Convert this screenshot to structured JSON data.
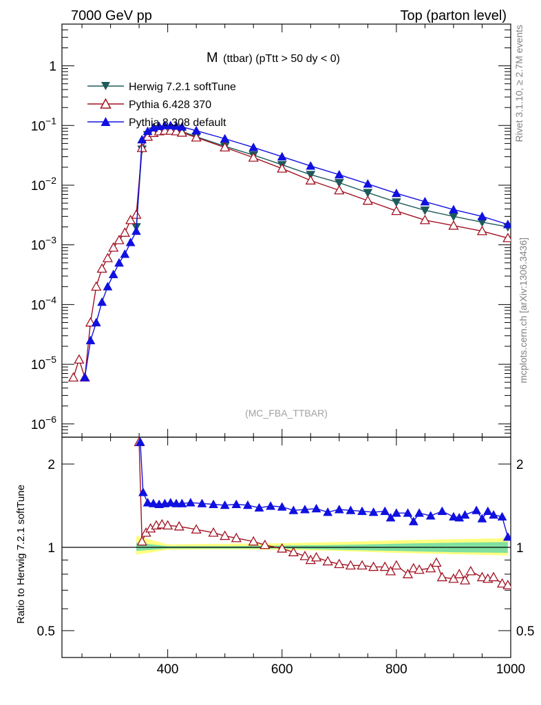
{
  "header": {
    "left": "7000 GeV pp",
    "right": "Top (parton level)"
  },
  "side": {
    "rivet": "Rivet 3.1.10, ≥ 2.7M events",
    "source": "mcplots.cern.ch [arXiv:1306.3436]"
  },
  "chart_data": [
    {
      "type": "line",
      "title_main": "M",
      "title_sub": "(ttbar) (pTtt > 50 dy < 0)",
      "watermark": "(MC_FBA_TTBAR)",
      "yscale": "log",
      "xlim": [
        215,
        1000
      ],
      "ylim": [
        6e-07,
        5
      ],
      "xticks": [
        400,
        600,
        800,
        1000
      ],
      "yticks": [
        {
          "v": 1e-06,
          "m": "10",
          "e": "−6"
        },
        {
          "v": 1e-05,
          "m": "10",
          "e": "−5"
        },
        {
          "v": 0.0001,
          "m": "10",
          "e": "−4"
        },
        {
          "v": 0.001,
          "m": "10",
          "e": "−3"
        },
        {
          "v": 0.01,
          "m": "10",
          "e": "−2"
        },
        {
          "v": 0.1,
          "m": "10",
          "e": "−1"
        },
        {
          "v": 1,
          "m": "1",
          "e": ""
        }
      ],
      "legend_position": "top-left",
      "series": [
        {
          "name": "Herwig 7.2.1 softTune",
          "color": "#1e5a5a",
          "marker": "triangle-down",
          "x": [
            345,
            355,
            365,
            375,
            385,
            395,
            405,
            415,
            425,
            450,
            500,
            550,
            600,
            650,
            700,
            750,
            800,
            850,
            900,
            950,
            995
          ],
          "y": [
            0.002,
            0.04,
            0.07,
            0.08,
            0.085,
            0.087,
            0.087,
            0.085,
            0.08,
            0.065,
            0.045,
            0.032,
            0.022,
            0.015,
            0.011,
            0.0075,
            0.0052,
            0.0038,
            0.003,
            0.0024,
            0.002
          ]
        },
        {
          "name": "Pythia 6.428 370",
          "color": "#a01020",
          "marker": "triangle-up-open",
          "x": [
            235,
            245,
            255,
            265,
            275,
            285,
            295,
            305,
            315,
            325,
            335,
            345,
            355,
            365,
            375,
            385,
            395,
            405,
            415,
            425,
            450,
            500,
            550,
            600,
            650,
            700,
            750,
            800,
            850,
            900,
            950,
            995
          ],
          "y": [
            6e-06,
            1.2e-05,
            6e-06,
            5e-05,
            0.0002,
            0.0004,
            0.0006,
            0.0009,
            0.0012,
            0.0016,
            0.0026,
            0.0032,
            0.042,
            0.065,
            0.075,
            0.08,
            0.082,
            0.082,
            0.08,
            0.076,
            0.063,
            0.043,
            0.029,
            0.019,
            0.012,
            0.0082,
            0.0055,
            0.0037,
            0.0026,
            0.0021,
            0.0017,
            0.0013
          ]
        },
        {
          "name": "Pythia 8.308 default",
          "color": "#1010e0",
          "marker": "triangle-up",
          "x": [
            255,
            265,
            275,
            285,
            295,
            305,
            315,
            325,
            335,
            345,
            355,
            365,
            375,
            385,
            395,
            405,
            415,
            425,
            450,
            500,
            550,
            600,
            650,
            700,
            750,
            800,
            850,
            900,
            950,
            995
          ],
          "y": [
            6e-06,
            2.5e-05,
            5e-05,
            0.00011,
            0.0002,
            0.00032,
            0.0005,
            0.0007,
            0.0011,
            0.0017,
            0.058,
            0.08,
            0.092,
            0.097,
            0.1,
            0.1,
            0.098,
            0.095,
            0.082,
            0.06,
            0.043,
            0.03,
            0.021,
            0.015,
            0.0105,
            0.0073,
            0.0053,
            0.0039,
            0.003,
            0.0022
          ]
        }
      ]
    },
    {
      "type": "line",
      "ylabel": "Ratio to Herwig 7.2.1 softTune",
      "yscale": "log",
      "xlim": [
        215,
        1000
      ],
      "ylim": [
        0.4,
        2.5
      ],
      "xticks": [
        400,
        600,
        800,
        1000
      ],
      "yticks": [
        0.5,
        1,
        2
      ],
      "reference_line": 1,
      "band": {
        "x": [
          345,
          400,
          500,
          600,
          700,
          800,
          900,
          995
        ],
        "inner_lo": [
          0.97,
          0.99,
          0.99,
          0.99,
          0.98,
          0.97,
          0.96,
          0.955
        ],
        "inner_hi": [
          1.04,
          1.01,
          1.01,
          1.015,
          1.02,
          1.03,
          1.04,
          1.045
        ],
        "outer_lo": [
          0.94,
          0.98,
          0.985,
          0.98,
          0.97,
          0.955,
          0.945,
          0.935
        ],
        "outer_hi": [
          1.1,
          1.025,
          1.03,
          1.035,
          1.045,
          1.06,
          1.07,
          1.08
        ]
      },
      "series": [
        {
          "name": "Pythia 6.428 370",
          "color": "#a01020",
          "marker": "triangle-up-open",
          "x": [
            350,
            355,
            362,
            370,
            380,
            390,
            400,
            420,
            450,
            480,
            500,
            520,
            550,
            570,
            600,
            620,
            640,
            650,
            660,
            680,
            700,
            720,
            740,
            760,
            780,
            790,
            800,
            820,
            830,
            840,
            860,
            870,
            880,
            900,
            910,
            920,
            930,
            950,
            960,
            970,
            985,
            995
          ],
          "y": [
            2.4,
            1.05,
            1.13,
            1.17,
            1.2,
            1.21,
            1.2,
            1.19,
            1.16,
            1.13,
            1.1,
            1.08,
            1.05,
            1.02,
            0.99,
            0.96,
            0.93,
            0.9,
            0.92,
            0.89,
            0.87,
            0.86,
            0.86,
            0.85,
            0.85,
            0.82,
            0.86,
            0.8,
            0.84,
            0.83,
            0.84,
            0.88,
            0.78,
            0.77,
            0.8,
            0.76,
            0.82,
            0.78,
            0.77,
            0.78,
            0.74,
            0.73
          ]
        },
        {
          "name": "Pythia 8.308 default",
          "color": "#1010e0",
          "marker": "triangle-up",
          "x": [
            352,
            357,
            365,
            375,
            385,
            395,
            405,
            415,
            425,
            440,
            460,
            480,
            500,
            520,
            540,
            560,
            580,
            600,
            620,
            640,
            660,
            680,
            700,
            720,
            740,
            760,
            780,
            790,
            800,
            820,
            830,
            840,
            860,
            880,
            900,
            910,
            920,
            940,
            950,
            960,
            970,
            985,
            995
          ],
          "y": [
            2.4,
            1.58,
            1.45,
            1.44,
            1.43,
            1.44,
            1.45,
            1.44,
            1.44,
            1.45,
            1.44,
            1.43,
            1.42,
            1.43,
            1.42,
            1.39,
            1.41,
            1.4,
            1.36,
            1.37,
            1.38,
            1.34,
            1.37,
            1.36,
            1.35,
            1.34,
            1.35,
            1.28,
            1.33,
            1.33,
            1.24,
            1.33,
            1.3,
            1.35,
            1.29,
            1.28,
            1.31,
            1.36,
            1.27,
            1.35,
            1.31,
            1.29,
            1.09
          ]
        }
      ]
    }
  ]
}
